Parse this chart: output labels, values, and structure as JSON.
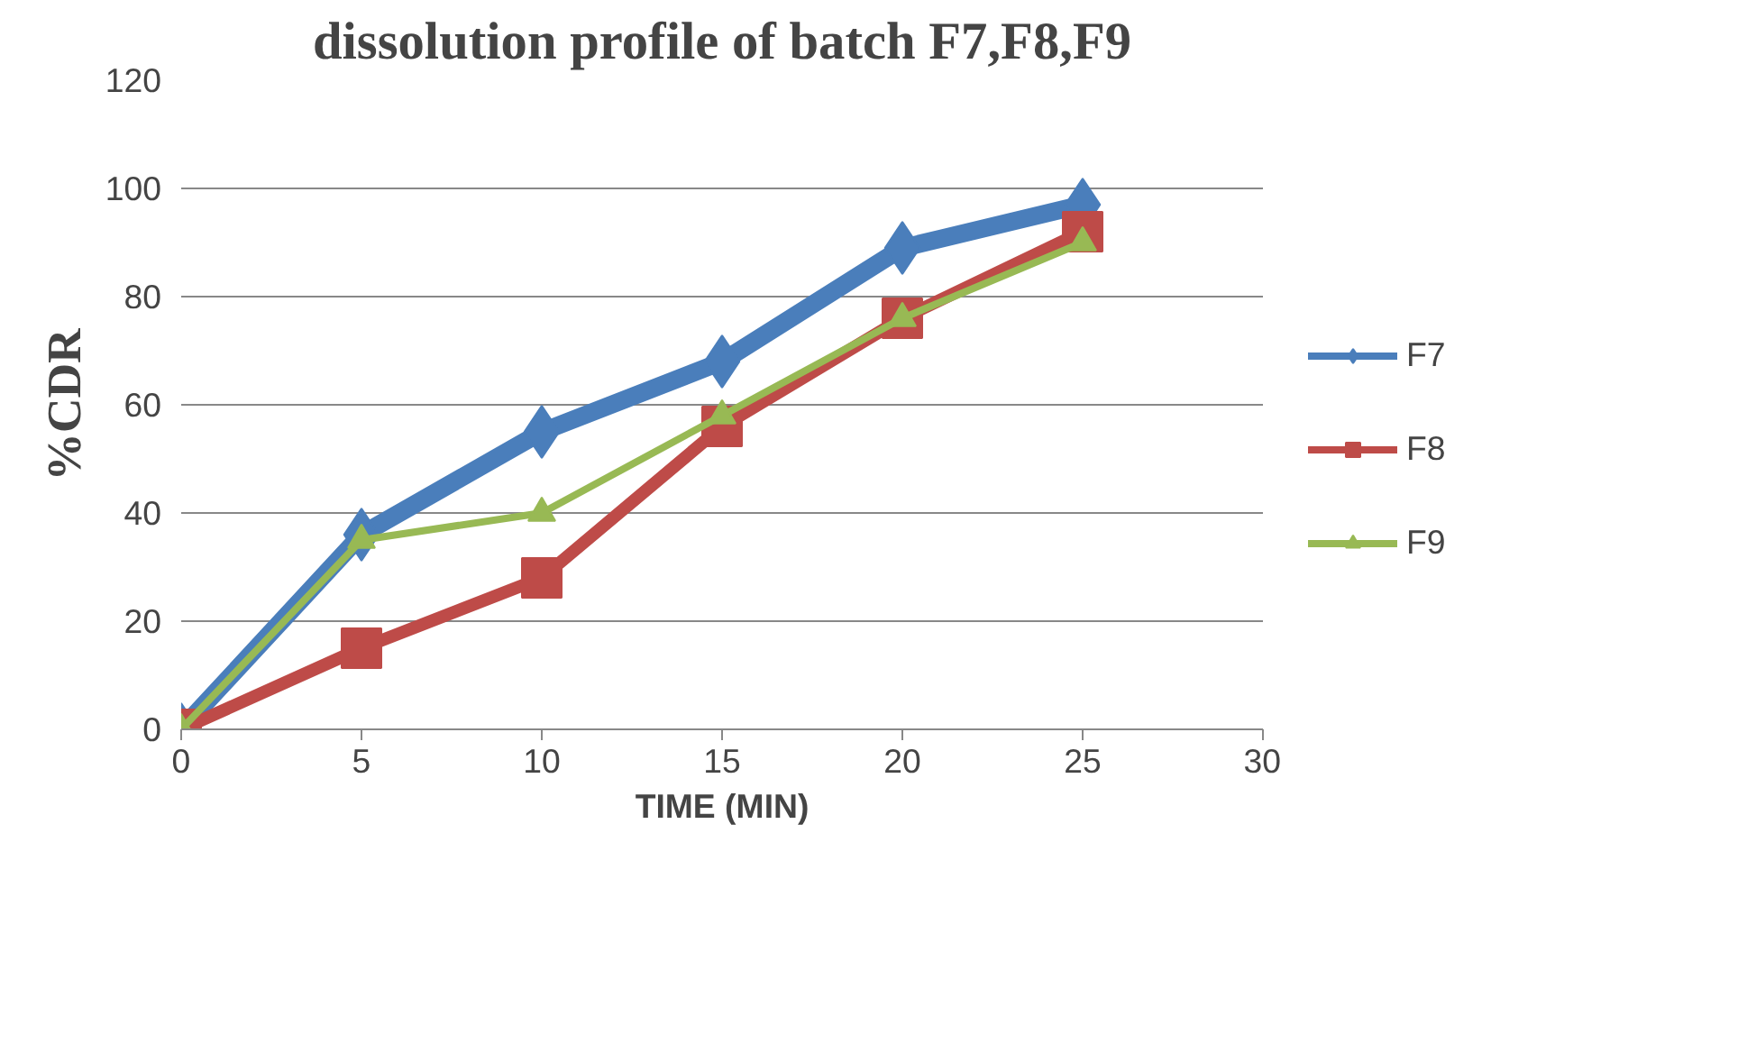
{
  "chart_data": {
    "type": "line",
    "title": "dissolution profile of batch F7,F8,F9",
    "xlabel": "TIME (MIN)",
    "ylabel": "%CDR",
    "x": [
      0,
      5,
      10,
      15,
      20,
      25
    ],
    "series": [
      {
        "name": "F7",
        "color": "#4a7ebb",
        "marker": "diamond",
        "values": [
          0,
          36,
          55,
          68,
          89,
          97
        ]
      },
      {
        "name": "F8",
        "color": "#be4b48",
        "marker": "square",
        "values": [
          0,
          15,
          28,
          56,
          76,
          92
        ]
      },
      {
        "name": "F9",
        "color": "#98b954",
        "marker": "triangle",
        "values": [
          0,
          35,
          40,
          58,
          76,
          90
        ]
      }
    ],
    "xlim": [
      0,
      30
    ],
    "xticks": [
      0,
      5,
      10,
      15,
      20,
      25,
      30
    ],
    "ylim": [
      0,
      120
    ],
    "yticks": [
      0,
      20,
      40,
      60,
      80,
      100,
      120
    ],
    "grid": "y",
    "legend": "right",
    "line_style": "solid"
  }
}
